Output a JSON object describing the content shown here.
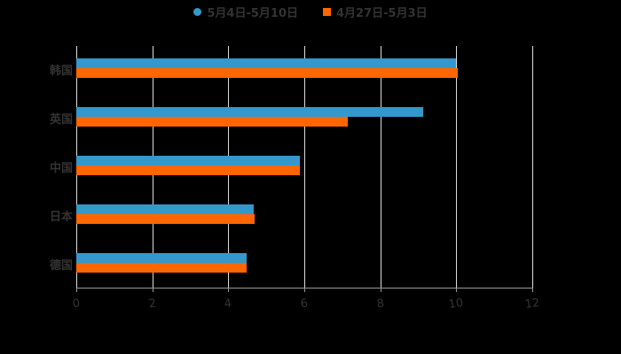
{
  "legend": [
    {
      "label": "5月4日-5月10日",
      "color": "#3399cc",
      "shape": "circle"
    },
    {
      "label": "4月27日-5月3日",
      "color": "#ff6600",
      "shape": "square"
    }
  ],
  "axis": {
    "ticks": [
      "0",
      "2",
      "4",
      "6",
      "8",
      "10",
      "12"
    ]
  },
  "categories": [
    "韩国",
    "英国",
    "中国",
    "日本",
    "德国"
  ],
  "chart_data": {
    "type": "bar",
    "orientation": "horizontal",
    "categories": [
      "韩国",
      "英国",
      "中国",
      "日本",
      "德国"
    ],
    "series": [
      {
        "name": "5月4日-5月10日",
        "color": "#3399cc",
        "values": [
          10.0,
          9.13,
          5.88,
          4.67,
          4.48
        ]
      },
      {
        "name": "4月27日-5月3日",
        "color": "#ff6600",
        "values": [
          10.05,
          7.14,
          5.88,
          4.69,
          4.48
        ]
      }
    ],
    "title": "",
    "xlabel": "",
    "ylabel": "",
    "xlim": [
      0,
      12
    ],
    "x_ticks": [
      0,
      2,
      4,
      6,
      8,
      10,
      12
    ],
    "grid": true,
    "legend_position": "top"
  }
}
